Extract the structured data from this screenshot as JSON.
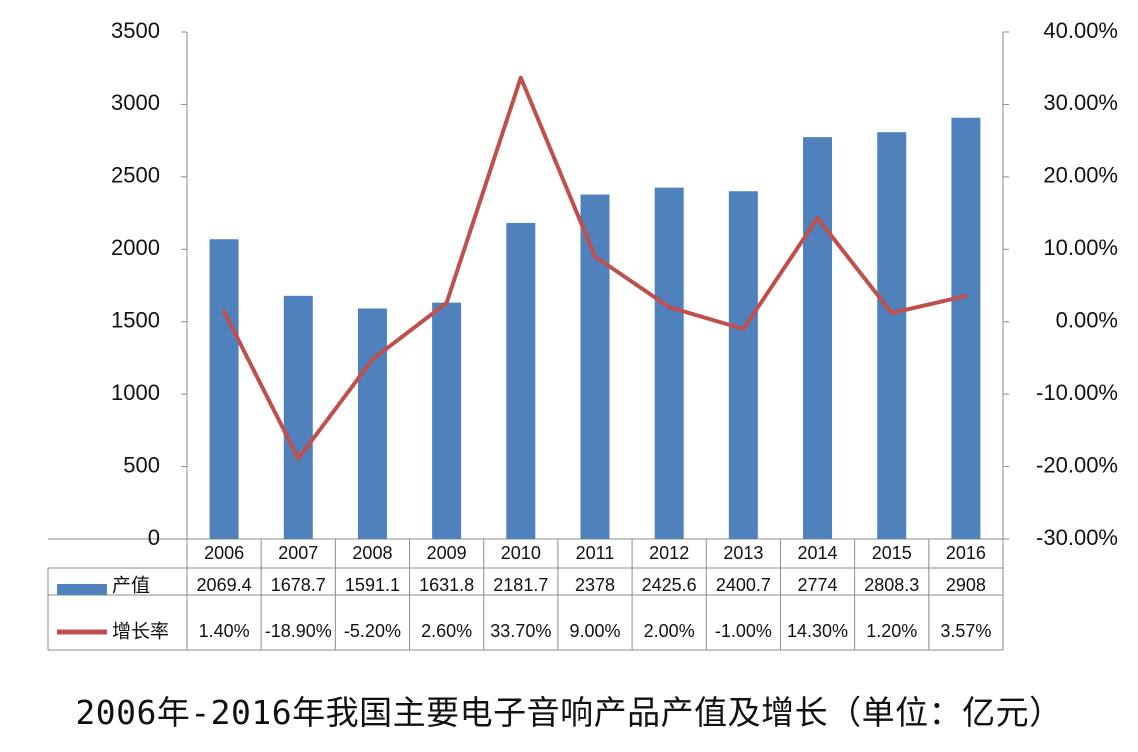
{
  "chart_data": {
    "type": "bar+line",
    "categories": [
      "2006",
      "2007",
      "2008",
      "2009",
      "2010",
      "2011",
      "2012",
      "2013",
      "2014",
      "2015",
      "2016"
    ],
    "series": [
      {
        "name": "产值",
        "type": "bar",
        "axis": "left",
        "color": "#4F81BD",
        "values": [
          2069.4,
          1678.7,
          1591.1,
          1631.8,
          2181.7,
          2378,
          2425.6,
          2400.7,
          2774,
          2808.3,
          2908
        ],
        "labels": [
          "2069.4",
          "1678.7",
          "1591.1",
          "1631.8",
          "2181.7",
          "2378",
          "2425.6",
          "2400.7",
          "2774",
          "2808.3",
          "2908"
        ]
      },
      {
        "name": "增长率",
        "type": "line",
        "axis": "right",
        "color": "#C0504D",
        "values": [
          1.4,
          -18.9,
          -5.2,
          2.6,
          33.7,
          9.0,
          2.0,
          -1.0,
          14.3,
          1.2,
          3.57
        ],
        "labels": [
          "1.40%",
          "-18.90%",
          "-5.20%",
          "2.60%",
          "33.70%",
          "9.00%",
          "2.00%",
          "-1.00%",
          "14.30%",
          "1.20%",
          "3.57%"
        ]
      }
    ],
    "ylim_left": [
      0,
      3500
    ],
    "yticks_left": [
      "0",
      "500",
      "1000",
      "1500",
      "2000",
      "2500",
      "3000",
      "3500"
    ],
    "ylim_right": [
      -30,
      40
    ],
    "yticks_right": [
      "-30.00%",
      "-20.00%",
      "-10.00%",
      "0.00%",
      "10.00%",
      "20.00%",
      "30.00%",
      "40.00%"
    ],
    "grid": false,
    "data_table": true
  },
  "caption": "2006年-2016年我国主要电子音响产品产值及增长（单位：亿元）"
}
